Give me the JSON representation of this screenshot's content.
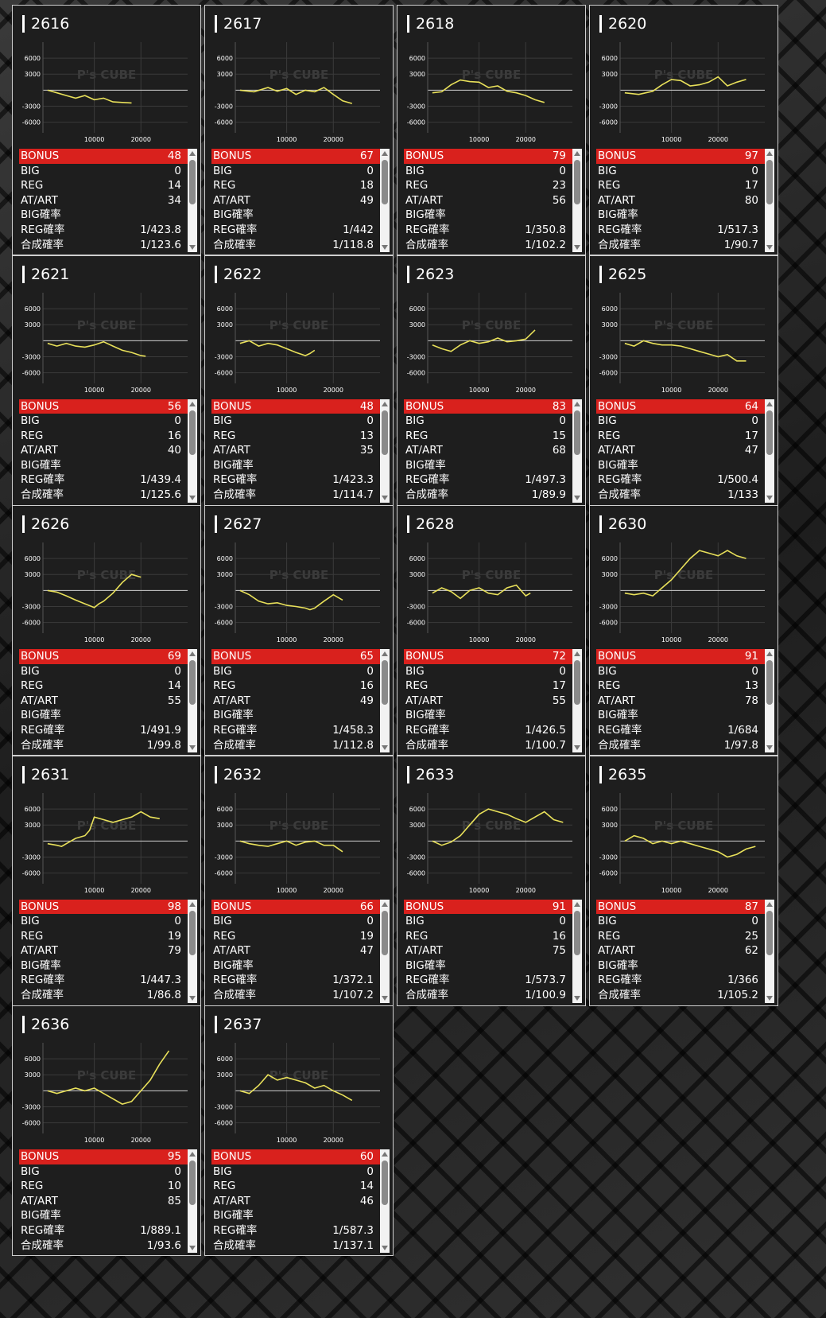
{
  "chart_axis": {
    "y_ticks": [
      "6000",
      "3000",
      "-3000",
      "-6000"
    ],
    "x_ticks": [
      "10000",
      "20000"
    ],
    "ylim": [
      -8000,
      9000
    ],
    "xlim": [
      -1000,
      30000
    ],
    "watermark": "P's CUBE"
  },
  "stat_labels": {
    "bonus": "BONUS",
    "big": "BIG",
    "reg": "REG",
    "at": "AT/ART",
    "big_rate": "BIG確率",
    "reg_rate": "REG確率",
    "total_rate": "合成確率"
  },
  "colors": {
    "bonus_bar": "#d9211d",
    "line": "#e8e05a",
    "card_bg": "#1e1e1e"
  },
  "machines": [
    {
      "id": "2616",
      "bonus": "48",
      "big": "0",
      "reg": "14",
      "at": "34",
      "big_rate": "",
      "reg_rate": "1/423.8",
      "total_rate": "1/123.6"
    },
    {
      "id": "2617",
      "bonus": "67",
      "big": "0",
      "reg": "18",
      "at": "49",
      "big_rate": "",
      "reg_rate": "1/442",
      "total_rate": "1/118.8"
    },
    {
      "id": "2618",
      "bonus": "79",
      "big": "0",
      "reg": "23",
      "at": "56",
      "big_rate": "",
      "reg_rate": "1/350.8",
      "total_rate": "1/102.2"
    },
    {
      "id": "2620",
      "bonus": "97",
      "big": "0",
      "reg": "17",
      "at": "80",
      "big_rate": "",
      "reg_rate": "1/517.3",
      "total_rate": "1/90.7"
    },
    {
      "id": "2621",
      "bonus": "56",
      "big": "0",
      "reg": "16",
      "at": "40",
      "big_rate": "",
      "reg_rate": "1/439.4",
      "total_rate": "1/125.6"
    },
    {
      "id": "2622",
      "bonus": "48",
      "big": "0",
      "reg": "13",
      "at": "35",
      "big_rate": "",
      "reg_rate": "1/423.3",
      "total_rate": "1/114.7"
    },
    {
      "id": "2623",
      "bonus": "83",
      "big": "0",
      "reg": "15",
      "at": "68",
      "big_rate": "",
      "reg_rate": "1/497.3",
      "total_rate": "1/89.9"
    },
    {
      "id": "2625",
      "bonus": "64",
      "big": "0",
      "reg": "17",
      "at": "47",
      "big_rate": "",
      "reg_rate": "1/500.4",
      "total_rate": "1/133"
    },
    {
      "id": "2626",
      "bonus": "69",
      "big": "0",
      "reg": "14",
      "at": "55",
      "big_rate": "",
      "reg_rate": "1/491.9",
      "total_rate": "1/99.8"
    },
    {
      "id": "2627",
      "bonus": "65",
      "big": "0",
      "reg": "16",
      "at": "49",
      "big_rate": "",
      "reg_rate": "1/458.3",
      "total_rate": "1/112.8"
    },
    {
      "id": "2628",
      "bonus": "72",
      "big": "0",
      "reg": "17",
      "at": "55",
      "big_rate": "",
      "reg_rate": "1/426.5",
      "total_rate": "1/100.7"
    },
    {
      "id": "2630",
      "bonus": "91",
      "big": "0",
      "reg": "13",
      "at": "78",
      "big_rate": "",
      "reg_rate": "1/684",
      "total_rate": "1/97.8"
    },
    {
      "id": "2631",
      "bonus": "98",
      "big": "0",
      "reg": "19",
      "at": "79",
      "big_rate": "",
      "reg_rate": "1/447.3",
      "total_rate": "1/86.8"
    },
    {
      "id": "2632",
      "bonus": "66",
      "big": "0",
      "reg": "19",
      "at": "47",
      "big_rate": "",
      "reg_rate": "1/372.1",
      "total_rate": "1/107.2"
    },
    {
      "id": "2633",
      "bonus": "91",
      "big": "0",
      "reg": "16",
      "at": "75",
      "big_rate": "",
      "reg_rate": "1/573.7",
      "total_rate": "1/100.9"
    },
    {
      "id": "2635",
      "bonus": "87",
      "big": "0",
      "reg": "25",
      "at": "62",
      "big_rate": "",
      "reg_rate": "1/366",
      "total_rate": "1/105.2"
    },
    {
      "id": "2636",
      "bonus": "95",
      "big": "0",
      "reg": "10",
      "at": "85",
      "big_rate": "",
      "reg_rate": "1/889.1",
      "total_rate": "1/93.6"
    },
    {
      "id": "2637",
      "bonus": "60",
      "big": "0",
      "reg": "14",
      "at": "46",
      "big_rate": "",
      "reg_rate": "1/587.3",
      "total_rate": "1/137.1"
    }
  ],
  "chart_data": [
    {
      "type": "line",
      "title": "2616",
      "series": [
        {
          "x": [
            0,
            2000,
            4000,
            6000,
            8000,
            10000,
            12000,
            14000,
            16000,
            18000
          ],
          "y": [
            0,
            -500,
            -1000,
            -1500,
            -1000,
            -1800,
            -1500,
            -2200,
            -2300,
            -2400
          ]
        }
      ]
    },
    {
      "type": "line",
      "title": "2617",
      "series": [
        {
          "x": [
            0,
            3000,
            6000,
            8000,
            10000,
            12000,
            14000,
            16000,
            18000,
            20000,
            22000,
            24000
          ],
          "y": [
            0,
            -300,
            500,
            -200,
            300,
            -800,
            0,
            -300,
            500,
            -800,
            -2000,
            -2500
          ]
        }
      ]
    },
    {
      "type": "line",
      "title": "2618",
      "series": [
        {
          "x": [
            0,
            2000,
            4000,
            6000,
            8000,
            10000,
            12000,
            14000,
            16000,
            18000,
            20000,
            22000,
            24000
          ],
          "y": [
            -500,
            -300,
            1000,
            1900,
            1600,
            1500,
            500,
            800,
            -200,
            -500,
            -1000,
            -1800,
            -2300
          ]
        }
      ]
    },
    {
      "type": "line",
      "title": "2620",
      "series": [
        {
          "x": [
            0,
            3000,
            6000,
            8000,
            10000,
            12000,
            14000,
            16000,
            18000,
            20000,
            22000,
            24000,
            26000
          ],
          "y": [
            -500,
            -800,
            -200,
            1000,
            2000,
            1800,
            800,
            1000,
            1500,
            2500,
            800,
            1500,
            2000
          ]
        }
      ]
    },
    {
      "type": "line",
      "title": "2621",
      "series": [
        {
          "x": [
            0,
            2000,
            4000,
            6000,
            8000,
            10000,
            12000,
            14000,
            16000,
            18000,
            20000,
            21000
          ],
          "y": [
            -500,
            -1000,
            -500,
            -1000,
            -1200,
            -800,
            -200,
            -1000,
            -1800,
            -2200,
            -2800,
            -2900
          ]
        }
      ]
    },
    {
      "type": "line",
      "title": "2622",
      "series": [
        {
          "x": [
            0,
            2000,
            4000,
            6000,
            8000,
            10000,
            12000,
            14000,
            15000,
            16000
          ],
          "y": [
            -500,
            0,
            -1000,
            -500,
            -800,
            -1500,
            -2200,
            -2800,
            -2400,
            -1800
          ]
        }
      ]
    },
    {
      "type": "line",
      "title": "2623",
      "series": [
        {
          "x": [
            0,
            2000,
            4000,
            6000,
            8000,
            10000,
            12000,
            14000,
            16000,
            18000,
            20000,
            22000
          ],
          "y": [
            -800,
            -1500,
            -2000,
            -800,
            0,
            -500,
            -200,
            500,
            -200,
            0,
            300,
            2000
          ]
        }
      ]
    },
    {
      "type": "line",
      "title": "2625",
      "series": [
        {
          "x": [
            0,
            2000,
            4000,
            6000,
            8000,
            10000,
            12000,
            14000,
            16000,
            18000,
            20000,
            22000,
            24000,
            26000
          ],
          "y": [
            -500,
            -1000,
            0,
            -500,
            -800,
            -800,
            -1000,
            -1500,
            -2000,
            -2500,
            -3000,
            -2600,
            -3800,
            -3800
          ]
        }
      ]
    },
    {
      "type": "line",
      "title": "2626",
      "series": [
        {
          "x": [
            0,
            2000,
            4000,
            6000,
            8000,
            10000,
            11000,
            12000,
            14000,
            16000,
            18000,
            20000
          ],
          "y": [
            0,
            -300,
            -1000,
            -1800,
            -2500,
            -3200,
            -2500,
            -2000,
            -500,
            1500,
            3000,
            2500
          ]
        }
      ]
    },
    {
      "type": "line",
      "title": "2627",
      "series": [
        {
          "x": [
            0,
            2000,
            4000,
            6000,
            8000,
            10000,
            12000,
            14000,
            15000,
            16000,
            18000,
            20000,
            22000
          ],
          "y": [
            0,
            -800,
            -2000,
            -2500,
            -2300,
            -2800,
            -3000,
            -3300,
            -3600,
            -3300,
            -2000,
            -800,
            -1800
          ]
        }
      ]
    },
    {
      "type": "line",
      "title": "2628",
      "series": [
        {
          "x": [
            0,
            2000,
            4000,
            6000,
            8000,
            10000,
            12000,
            14000,
            16000,
            18000,
            20000,
            21000
          ],
          "y": [
            -500,
            500,
            -200,
            -1500,
            0,
            500,
            -500,
            -800,
            500,
            1000,
            -1000,
            -500
          ]
        }
      ]
    },
    {
      "type": "line",
      "title": "2630",
      "series": [
        {
          "x": [
            0,
            2000,
            4000,
            6000,
            8000,
            10000,
            12000,
            14000,
            16000,
            18000,
            20000,
            22000,
            24000,
            26000
          ],
          "y": [
            -500,
            -800,
            -500,
            -1000,
            500,
            2000,
            4000,
            6000,
            7500,
            7000,
            6500,
            7500,
            6500,
            6000
          ]
        }
      ]
    },
    {
      "type": "line",
      "title": "2631",
      "series": [
        {
          "x": [
            0,
            2000,
            3000,
            4000,
            6000,
            8000,
            9000,
            10000,
            12000,
            14000,
            16000,
            18000,
            20000,
            22000,
            24000
          ],
          "y": [
            -500,
            -800,
            -1000,
            -500,
            500,
            1000,
            2000,
            4500,
            4000,
            3500,
            4000,
            4500,
            5500,
            4500,
            4200
          ]
        }
      ]
    },
    {
      "type": "line",
      "title": "2632",
      "series": [
        {
          "x": [
            0,
            2000,
            4000,
            6000,
            8000,
            10000,
            12000,
            14000,
            16000,
            18000,
            20000,
            22000
          ],
          "y": [
            0,
            -500,
            -800,
            -1000,
            -500,
            0,
            -800,
            -200,
            0,
            -800,
            -800,
            -2000
          ]
        }
      ]
    },
    {
      "type": "line",
      "title": "2633",
      "series": [
        {
          "x": [
            0,
            2000,
            4000,
            6000,
            8000,
            10000,
            12000,
            14000,
            16000,
            18000,
            20000,
            22000,
            24000,
            26000,
            28000
          ],
          "y": [
            0,
            -800,
            -200,
            1000,
            3000,
            5000,
            6000,
            5500,
            5000,
            4200,
            3500,
            4500,
            5500,
            4000,
            3500
          ]
        }
      ]
    },
    {
      "type": "line",
      "title": "2635",
      "series": [
        {
          "x": [
            0,
            2000,
            4000,
            6000,
            8000,
            10000,
            12000,
            14000,
            16000,
            18000,
            20000,
            22000,
            24000,
            26000,
            28000
          ],
          "y": [
            0,
            1000,
            500,
            -500,
            0,
            -500,
            0,
            -500,
            -1000,
            -1500,
            -2000,
            -3000,
            -2500,
            -1500,
            -1000
          ]
        }
      ]
    },
    {
      "type": "line",
      "title": "2636",
      "series": [
        {
          "x": [
            0,
            2000,
            4000,
            6000,
            8000,
            10000,
            12000,
            14000,
            16000,
            18000,
            20000,
            22000,
            24000,
            26000
          ],
          "y": [
            0,
            -500,
            0,
            500,
            0,
            500,
            -500,
            -1500,
            -2500,
            -2000,
            0,
            2000,
            5000,
            7500
          ]
        }
      ]
    },
    {
      "type": "line",
      "title": "2637",
      "series": [
        {
          "x": [
            0,
            2000,
            4000,
            6000,
            8000,
            10000,
            12000,
            14000,
            16000,
            18000,
            20000,
            22000,
            24000
          ],
          "y": [
            0,
            -500,
            1000,
            3000,
            2000,
            2500,
            2000,
            1500,
            500,
            1000,
            0,
            -800,
            -1800
          ]
        }
      ]
    }
  ]
}
